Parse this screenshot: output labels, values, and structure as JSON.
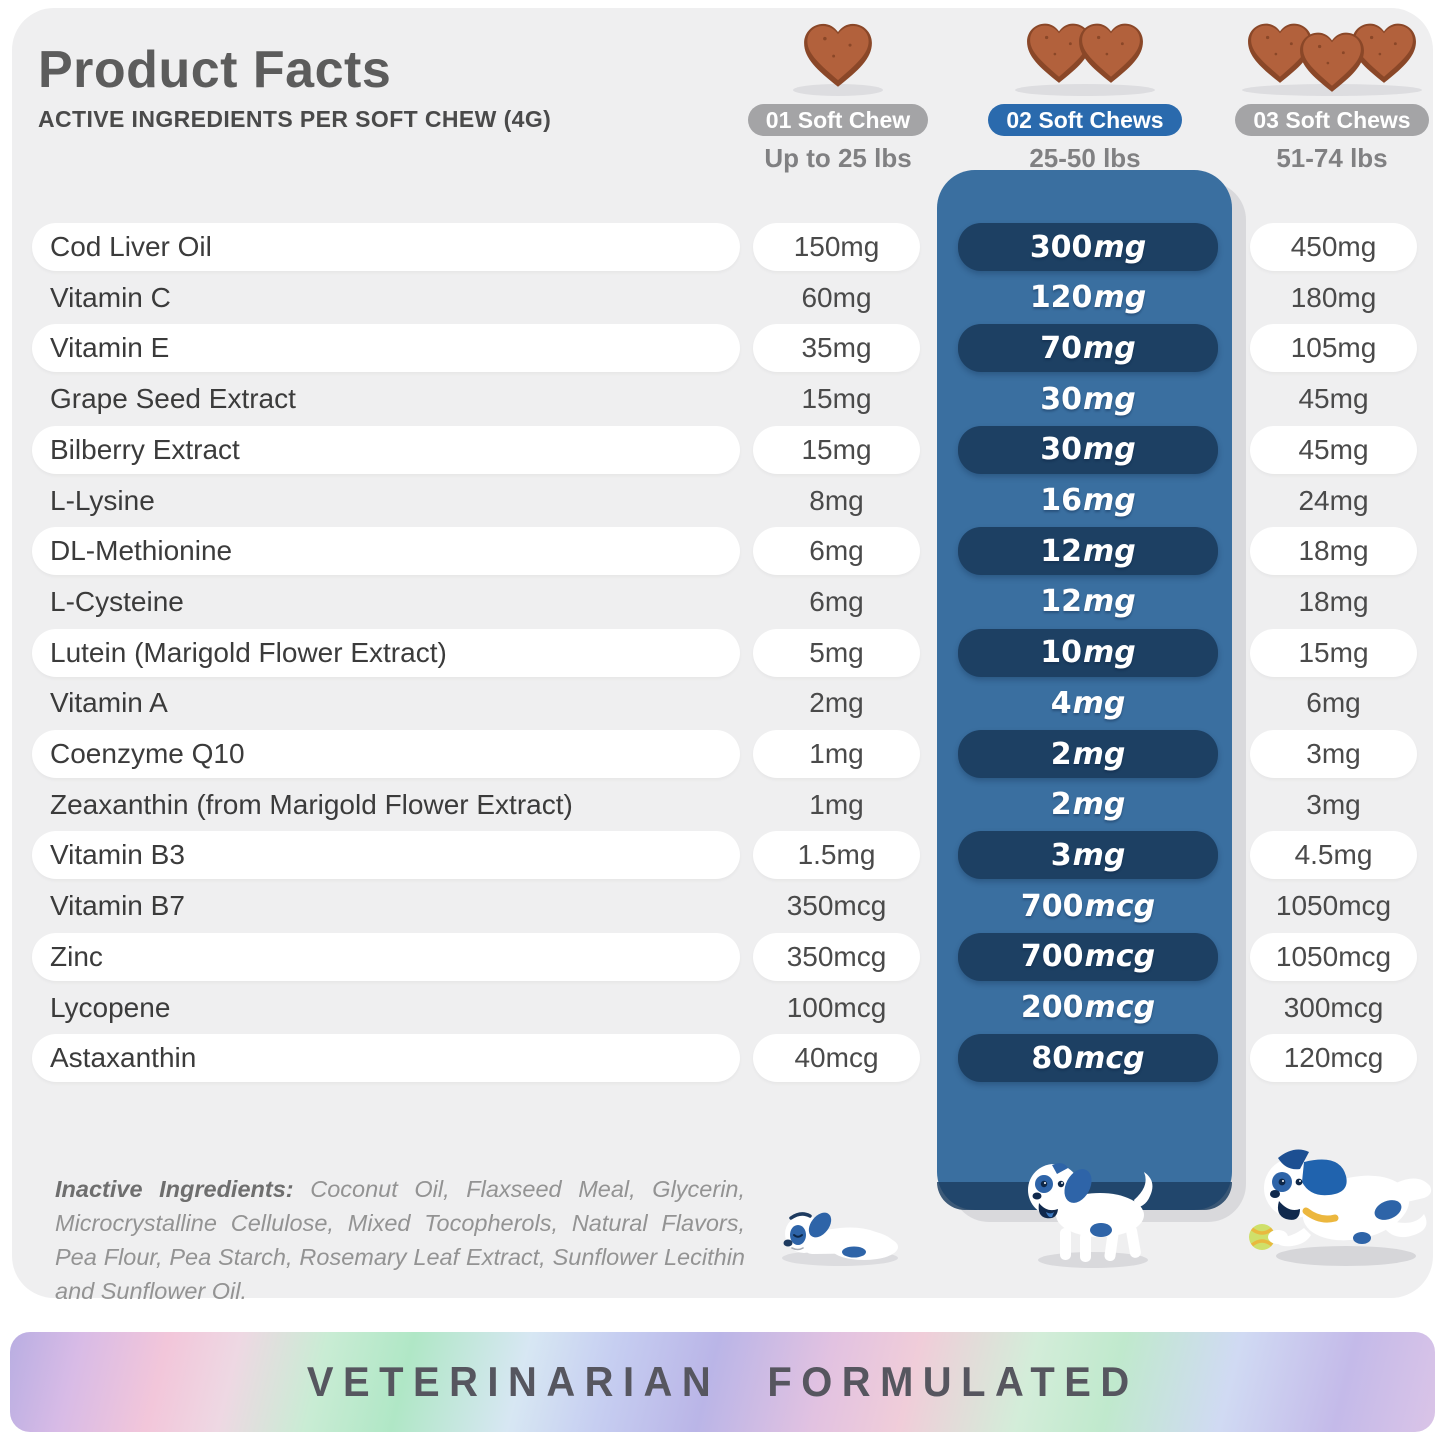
{
  "page": {
    "title": "Product Facts",
    "subtitle": "ACTIVE INGREDIENTS PER SOFT CHEW (4G)"
  },
  "header": {
    "columns": [
      {
        "badge": "01 Soft Chew",
        "weight": "Up to 25 lbs",
        "chew_count": 1,
        "badge_style": "gray"
      },
      {
        "badge": "02 Soft Chews",
        "weight": "25-50 lbs",
        "chew_count": 2,
        "badge_style": "blue"
      },
      {
        "badge": "03 Soft Chews",
        "weight": "51-74 lbs",
        "chew_count": 3,
        "badge_style": "gray"
      }
    ]
  },
  "table": {
    "rows": [
      {
        "name": "Cod Liver Oil",
        "c1": "150mg",
        "c2num": "300",
        "c2unit": "mg",
        "c3": "450mg",
        "highlight": true
      },
      {
        "name": "Vitamin C",
        "c1": "60mg",
        "c2num": "120",
        "c2unit": "mg",
        "c3": "180mg",
        "highlight": false
      },
      {
        "name": "Vitamin E",
        "c1": "35mg",
        "c2num": "70",
        "c2unit": "mg",
        "c3": "105mg",
        "highlight": true
      },
      {
        "name": "Grape Seed Extract",
        "c1": "15mg",
        "c2num": "30",
        "c2unit": "mg",
        "c3": "45mg",
        "highlight": false
      },
      {
        "name": "Bilberry Extract",
        "c1": "15mg",
        "c2num": "30",
        "c2unit": "mg",
        "c3": "45mg",
        "highlight": true
      },
      {
        "name": "L-Lysine",
        "c1": "8mg",
        "c2num": "16",
        "c2unit": "mg",
        "c3": "24mg",
        "highlight": false
      },
      {
        "name": "DL-Methionine",
        "c1": "6mg",
        "c2num": "12",
        "c2unit": "mg",
        "c3": "18mg",
        "highlight": true
      },
      {
        "name": "L-Cysteine",
        "c1": "6mg",
        "c2num": "12",
        "c2unit": "mg",
        "c3": "18mg",
        "highlight": false
      },
      {
        "name": "Lutein (Marigold Flower Extract)",
        "c1": "5mg",
        "c2num": "10",
        "c2unit": "mg",
        "c3": "15mg",
        "highlight": true
      },
      {
        "name": "Vitamin A",
        "c1": "2mg",
        "c2num": "4",
        "c2unit": "mg",
        "c3": "6mg",
        "highlight": false
      },
      {
        "name": "Coenzyme Q10",
        "c1": "1mg",
        "c2num": "2",
        "c2unit": "mg",
        "c3": "3mg",
        "highlight": true
      },
      {
        "name": "Zeaxanthin (from Marigold Flower Extract)",
        "c1": "1mg",
        "c2num": "2",
        "c2unit": "mg",
        "c3": "3mg",
        "highlight": false
      },
      {
        "name": "Vitamin B3",
        "c1": "1.5mg",
        "c2num": "3",
        "c2unit": "mg",
        "c3": "4.5mg",
        "highlight": true
      },
      {
        "name": "Vitamin B7",
        "c1": "350mcg",
        "c2num": "700",
        "c2unit": "mcg",
        "c3": "1050mcg",
        "highlight": false
      },
      {
        "name": "Zinc",
        "c1": "350mcg",
        "c2num": "700",
        "c2unit": "mcg",
        "c3": "1050mcg",
        "highlight": true
      },
      {
        "name": "Lycopene",
        "c1": "100mcg",
        "c2num": "200",
        "c2unit": "mcg",
        "c3": "300mcg",
        "highlight": false
      },
      {
        "name": "Astaxanthin",
        "c1": "40mcg",
        "c2num": "80",
        "c2unit": "mcg",
        "c3": "120mcg",
        "highlight": true
      }
    ]
  },
  "inactive": {
    "label": "Inactive Ingredients:",
    "text": "Coconut Oil, Flaxseed Meal, Glycerin, Microcrystalline Cellulose, Mixed Tocopherols, Natural Flavors, Pea Flour, Pea Starch, Rosemary Leaf Extract, Sunflower Lecithin and Sunflower Oil."
  },
  "footer": {
    "banner": "VETERINARIAN  FORMULATED"
  },
  "colors": {
    "accent_blue": "#2a6aad",
    "panel_blue": "#3a6fa0",
    "pill_navy": "#1d4063",
    "badge_gray": "#a4a4a6",
    "card_gray": "#efeff0",
    "chew_brown": "#b2613c",
    "chew_brown_dark": "#8a4728"
  }
}
